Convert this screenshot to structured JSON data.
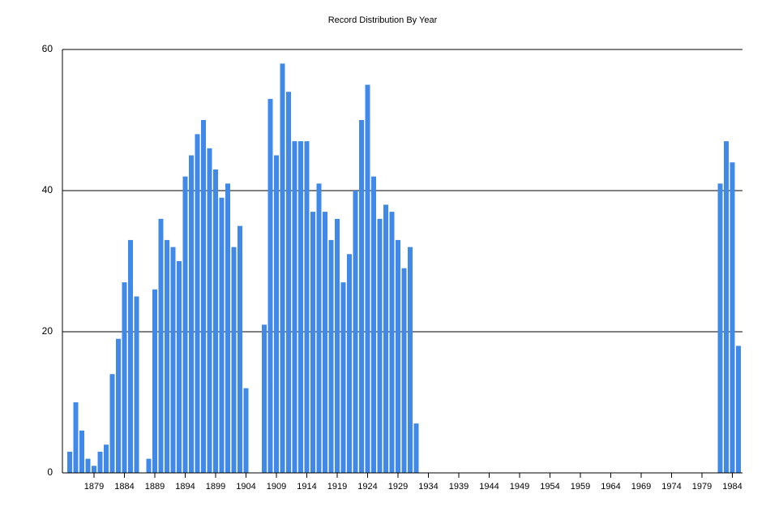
{
  "chart_data": {
    "type": "bar",
    "title": "Record Distribution By Year",
    "categories": [
      null,
      null,
      null,
      null,
      "1879",
      null,
      null,
      null,
      null,
      "1884",
      null,
      null,
      null,
      null,
      "1889",
      null,
      null,
      null,
      null,
      "1894",
      null,
      null,
      null,
      null,
      "1899",
      null,
      null,
      null,
      null,
      "1904",
      null,
      null,
      null,
      null,
      "1909",
      null,
      null,
      null,
      null,
      "1914",
      null,
      null,
      null,
      null,
      "1919",
      null,
      null,
      null,
      null,
      "1924",
      null,
      null,
      null,
      null,
      "1929",
      null,
      null,
      null,
      null,
      "1934",
      null,
      null,
      null,
      null,
      "1939",
      null,
      null,
      null,
      null,
      "1944",
      null,
      null,
      null,
      null,
      "1949",
      null,
      null,
      null,
      null,
      "1954",
      null,
      null,
      null,
      null,
      "1959",
      null,
      null,
      null,
      null,
      "1964",
      null,
      null,
      null,
      null,
      "1969",
      null,
      null,
      null,
      null,
      "1974",
      null,
      null,
      null,
      null,
      "1979",
      null,
      null,
      null,
      null,
      "1984",
      null
    ],
    "values": [
      3,
      10,
      6,
      2,
      1,
      3,
      4,
      14,
      19,
      27,
      33,
      25,
      0,
      2,
      26,
      36,
      33,
      32,
      30,
      42,
      45,
      48,
      50,
      46,
      43,
      39,
      41,
      32,
      35,
      12,
      0,
      0,
      21,
      53,
      45,
      58,
      54,
      47,
      47,
      47,
      37,
      41,
      37,
      33,
      36,
      27,
      31,
      40,
      50,
      55,
      42,
      36,
      38,
      37,
      33,
      29,
      32,
      7,
      0,
      0,
      0,
      0,
      0,
      0,
      0,
      0,
      0,
      0,
      0,
      0,
      0,
      0,
      0,
      0,
      0,
      0,
      0,
      0,
      0,
      0,
      0,
      0,
      0,
      0,
      0,
      0,
      0,
      0,
      0,
      0,
      0,
      0,
      0,
      0,
      0,
      0,
      0,
      0,
      0,
      0,
      0,
      0,
      0,
      0,
      0,
      0,
      0,
      41,
      47,
      44,
      18
    ],
    "color": "#4189e9",
    "ylim": [
      0,
      60
    ],
    "yticks": [
      0,
      20,
      40,
      60
    ],
    "grid": true
  }
}
